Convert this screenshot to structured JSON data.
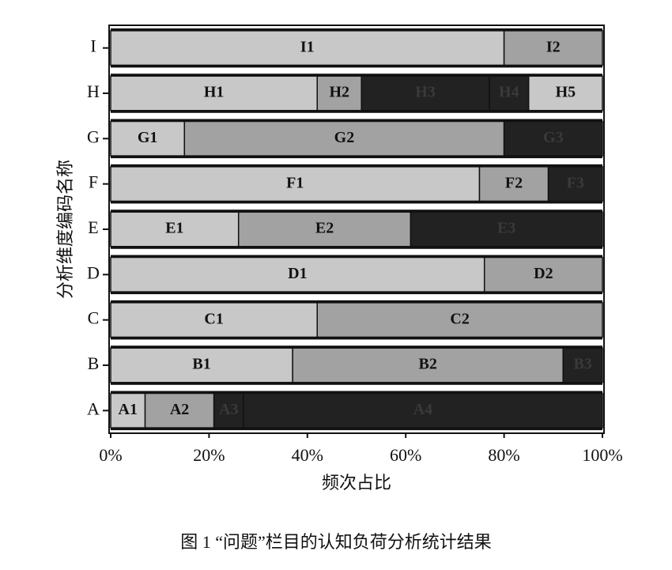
{
  "chart_data": {
    "type": "stacked_bar",
    "y_label": "分析维度编码名称",
    "x_label": "频次占比",
    "caption": "图 1 “问题”栏目的认知负荷分析统计结果",
    "xlim": [
      0,
      100
    ],
    "xticks": [
      {
        "value": 0,
        "label": "0%"
      },
      {
        "value": 20,
        "label": "20%"
      },
      {
        "value": 40,
        "label": "40%"
      },
      {
        "value": 60,
        "label": "60%"
      },
      {
        "value": 80,
        "label": "80%"
      },
      {
        "value": 100,
        "label": "100%"
      }
    ],
    "bars": [
      {
        "category": "A",
        "segments": [
          {
            "name": "A1",
            "value": 7,
            "color": "#c8c8c8"
          },
          {
            "name": "A2",
            "value": 14,
            "color": "#a2a2a2"
          },
          {
            "name": "A3",
            "value": 6,
            "color": "#222222"
          },
          {
            "name": "A4",
            "value": 73,
            "color": "#222222"
          }
        ]
      },
      {
        "category": "B",
        "segments": [
          {
            "name": "B1",
            "value": 37,
            "color": "#c8c8c8"
          },
          {
            "name": "B2",
            "value": 55,
            "color": "#a2a2a2"
          },
          {
            "name": "B3",
            "value": 8,
            "color": "#222222"
          }
        ]
      },
      {
        "category": "C",
        "segments": [
          {
            "name": "C1",
            "value": 42,
            "color": "#c8c8c8"
          },
          {
            "name": "C2",
            "value": 58,
            "color": "#a2a2a2"
          }
        ]
      },
      {
        "category": "D",
        "segments": [
          {
            "name": "D1",
            "value": 76,
            "color": "#c8c8c8"
          },
          {
            "name": "D2",
            "value": 24,
            "color": "#a2a2a2"
          }
        ]
      },
      {
        "category": "E",
        "segments": [
          {
            "name": "E1",
            "value": 26,
            "color": "#c8c8c8"
          },
          {
            "name": "E2",
            "value": 35,
            "color": "#a2a2a2"
          },
          {
            "name": "E3",
            "value": 39,
            "color": "#222222"
          }
        ]
      },
      {
        "category": "F",
        "segments": [
          {
            "name": "F1",
            "value": 75,
            "color": "#c8c8c8"
          },
          {
            "name": "F2",
            "value": 14,
            "color": "#a2a2a2"
          },
          {
            "name": "F3",
            "value": 11,
            "color": "#222222"
          }
        ]
      },
      {
        "category": "G",
        "segments": [
          {
            "name": "G1",
            "value": 15,
            "color": "#c8c8c8"
          },
          {
            "name": "G2",
            "value": 65,
            "color": "#a2a2a2"
          },
          {
            "name": "G3",
            "value": 20,
            "color": "#222222"
          }
        ]
      },
      {
        "category": "H",
        "segments": [
          {
            "name": "H1",
            "value": 42,
            "color": "#c8c8c8"
          },
          {
            "name": "H2",
            "value": 9,
            "color": "#a2a2a2"
          },
          {
            "name": "H3",
            "value": 26,
            "color": "#222222"
          },
          {
            "name": "H4",
            "value": 8,
            "color": "#222222"
          },
          {
            "name": "H5",
            "value": 15,
            "color": "#c8c8c8"
          }
        ]
      },
      {
        "category": "I",
        "segments": [
          {
            "name": "I1",
            "value": 80,
            "color": "#c8c8c8"
          },
          {
            "name": "I2",
            "value": 20,
            "color": "#a2a2a2"
          }
        ]
      }
    ]
  }
}
